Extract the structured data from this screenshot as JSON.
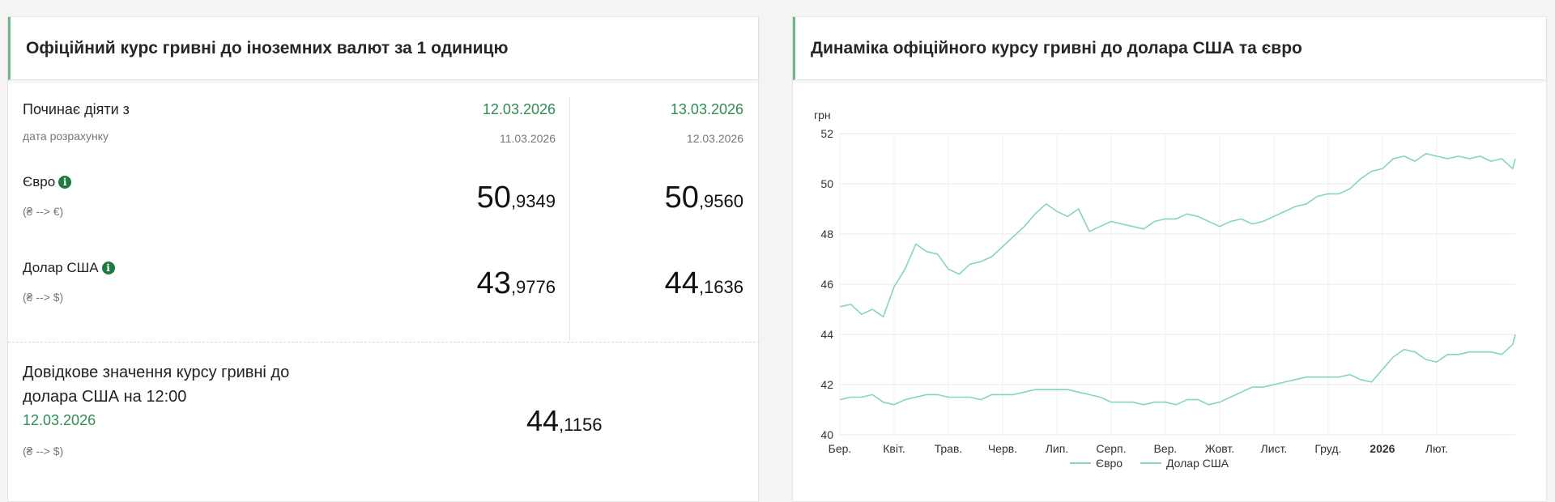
{
  "left": {
    "title": "Офіційний курс гривні до іноземних валют за 1 одиницю",
    "effective_label": "Починає діяти з",
    "calc_label": "дата розрахунку",
    "col1": {
      "effective_date": "12.03.2026",
      "calc_date": "11.03.2026"
    },
    "col2": {
      "effective_date": "13.03.2026",
      "calc_date": "12.03.2026"
    },
    "rows": [
      {
        "name": "Євро",
        "conv": "(₴ --> €)",
        "col1_int": "50",
        "col1_frac": ",9349",
        "col2_int": "50",
        "col2_frac": ",9560",
        "icon": "info-icon"
      },
      {
        "name": "Долар США",
        "conv": "(₴ --> $)",
        "col1_int": "43",
        "col1_frac": ",9776",
        "col2_int": "44",
        "col2_frac": ",1636",
        "icon": "info-icon"
      }
    ],
    "reference": {
      "line1": "Довідкове значення курсу гривні до",
      "line2": "долара США на 12:00",
      "date": "12.03.2026",
      "conv": "(₴ --> $)",
      "int": "44",
      "frac": ",1156"
    }
  },
  "right": {
    "title": "Динаміка офіційного курсу гривні до долара США та євро"
  },
  "colors": {
    "accent_green": "#2f8b52",
    "line_color": "#86d7b1",
    "icon_green": "#1f7a3f"
  },
  "chart_data": {
    "type": "line",
    "title": "",
    "ylabel": "грн",
    "xlabel": "",
    "ylim": [
      40,
      52
    ],
    "yticks": [
      40,
      42,
      44,
      46,
      48,
      50,
      52
    ],
    "xticks": [
      "Бер.",
      "Квіт.",
      "Трав.",
      "Черв.",
      "Лип.",
      "Серп.",
      "Вер.",
      "Жовт.",
      "Лист.",
      "Груд.",
      "2026",
      "Лют."
    ],
    "grid": true,
    "legend_position": "bottom",
    "series": [
      {
        "name": "Євро",
        "x": [
          0,
          0.2,
          0.4,
          0.6,
          0.8,
          1.0,
          1.2,
          1.4,
          1.6,
          1.8,
          2.0,
          2.2,
          2.4,
          2.6,
          2.8,
          3.0,
          3.2,
          3.4,
          3.6,
          3.8,
          4.0,
          4.2,
          4.4,
          4.6,
          4.8,
          5.0,
          5.2,
          5.4,
          5.6,
          5.8,
          6.0,
          6.2,
          6.4,
          6.6,
          6.8,
          7.0,
          7.2,
          7.4,
          7.6,
          7.8,
          8.0,
          8.2,
          8.4,
          8.6,
          8.8,
          9.0,
          9.2,
          9.4,
          9.6,
          9.8,
          10.0,
          10.2,
          10.4,
          10.6,
          10.8,
          11.0,
          11.2,
          11.4,
          11.6,
          11.8,
          12.0,
          12.2,
          12.4,
          12.45
        ],
        "values": [
          45.1,
          45.2,
          44.8,
          45.0,
          44.7,
          45.9,
          46.6,
          47.6,
          47.3,
          47.2,
          46.6,
          46.4,
          46.8,
          46.9,
          47.1,
          47.5,
          47.9,
          48.3,
          48.8,
          49.2,
          48.9,
          48.7,
          49.0,
          48.1,
          48.3,
          48.5,
          48.4,
          48.3,
          48.2,
          48.5,
          48.6,
          48.6,
          48.8,
          48.7,
          48.5,
          48.3,
          48.5,
          48.6,
          48.4,
          48.5,
          48.7,
          48.9,
          49.1,
          49.2,
          49.5,
          49.6,
          49.6,
          49.8,
          50.2,
          50.5,
          50.6,
          51.0,
          51.1,
          50.9,
          51.2,
          51.1,
          51.0,
          51.1,
          51.0,
          51.1,
          50.9,
          51.0,
          50.6,
          51.0
        ]
      },
      {
        "name": "Долар США",
        "x": [
          0,
          0.2,
          0.4,
          0.6,
          0.8,
          1.0,
          1.2,
          1.4,
          1.6,
          1.8,
          2.0,
          2.2,
          2.4,
          2.6,
          2.8,
          3.0,
          3.2,
          3.4,
          3.6,
          3.8,
          4.0,
          4.2,
          4.4,
          4.6,
          4.8,
          5.0,
          5.2,
          5.4,
          5.6,
          5.8,
          6.0,
          6.2,
          6.4,
          6.6,
          6.8,
          7.0,
          7.2,
          7.4,
          7.6,
          7.8,
          8.0,
          8.2,
          8.4,
          8.6,
          8.8,
          9.0,
          9.2,
          9.4,
          9.6,
          9.8,
          10.0,
          10.2,
          10.4,
          10.6,
          10.8,
          11.0,
          11.2,
          11.4,
          11.6,
          11.8,
          12.0,
          12.2,
          12.4,
          12.45
        ],
        "values": [
          41.4,
          41.5,
          41.5,
          41.6,
          41.3,
          41.2,
          41.4,
          41.5,
          41.6,
          41.6,
          41.5,
          41.5,
          41.5,
          41.4,
          41.6,
          41.6,
          41.6,
          41.7,
          41.8,
          41.8,
          41.8,
          41.8,
          41.7,
          41.6,
          41.5,
          41.3,
          41.3,
          41.3,
          41.2,
          41.3,
          41.3,
          41.2,
          41.4,
          41.4,
          41.2,
          41.3,
          41.5,
          41.7,
          41.9,
          41.9,
          42.0,
          42.1,
          42.2,
          42.3,
          42.3,
          42.3,
          42.3,
          42.4,
          42.2,
          42.1,
          42.6,
          43.1,
          43.4,
          43.3,
          43.0,
          42.9,
          43.2,
          43.2,
          43.3,
          43.3,
          43.3,
          43.2,
          43.6,
          44.0
        ]
      }
    ]
  }
}
